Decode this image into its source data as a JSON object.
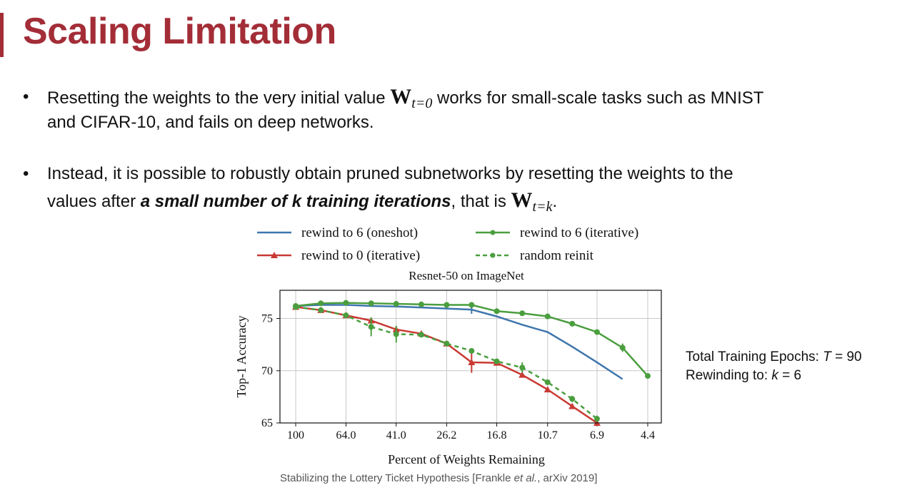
{
  "slide": {
    "title": "Scaling Limitation",
    "accent_color": "#a32d37"
  },
  "bullets": [
    {
      "before": "Resetting the weights to the very initial value ",
      "math": "W",
      "math_sub": "t=0",
      "after_line1": " works for small-scale tasks such as MNIST",
      "line2": "and CIFAR-10, and fails on deep networks."
    },
    {
      "line1": "Instead, it is possible to robustly obtain pruned subnetworks by resetting the weights to the",
      "line2_before": "values after ",
      "line2_emph": "a small number of k training iterations",
      "line2_mid": ", that is ",
      "math": "W",
      "math_sub": "t=k",
      "line2_after": "."
    }
  ],
  "bullet_symbol": "•",
  "side_note": {
    "line1_label": "Total Training Epochs: ",
    "line1_var": "T",
    "line1_value": " = 90",
    "line2_label": "Rewinding to: ",
    "line2_var": "k",
    "line2_value": " = 6"
  },
  "caption": {
    "before": "Stabilizing the Lottery Ticket Hypothesis [Frankle ",
    "emph": "et al.",
    "after": ", arXiv 2019]"
  },
  "chart_data": {
    "type": "line",
    "title": "Resnet-50 on ImageNet",
    "xlabel": "Percent of Weights Remaining",
    "ylabel": "Top-1 Accuracy",
    "x_scale": "log (reversed)",
    "x_ticks": [
      100,
      64.0,
      41.0,
      26.2,
      16.8,
      10.7,
      6.9,
      4.4
    ],
    "x_tick_labels": [
      "100",
      "64.0",
      "41.0",
      "26.2",
      "16.8",
      "10.7",
      "6.9",
      "4.4"
    ],
    "y_ticks": [
      65,
      70,
      75
    ],
    "ylim": [
      65,
      77.7
    ],
    "xlim": [
      115,
      3.9
    ],
    "grid": true,
    "legend_position": "top, above plot (2 columns)",
    "series": [
      {
        "name": "rewind to 6 (oneshot)",
        "color": "#3e76ad",
        "dashed": false,
        "marker": "none",
        "x": [
          100,
          80,
          64.0,
          51.2,
          41.0,
          32.8,
          26.2,
          21.0,
          16.8,
          13.4,
          10.7,
          8.6,
          6.9,
          5.5
        ],
        "y": [
          76.2,
          76.3,
          76.3,
          76.2,
          76.15,
          76.05,
          75.95,
          75.85,
          75.2,
          74.4,
          73.7,
          72.3,
          70.8,
          69.2
        ],
        "err": [
          0,
          0,
          0,
          0,
          0,
          0,
          0,
          0.4,
          0,
          0,
          0,
          0,
          0,
          0
        ]
      },
      {
        "name": "rewind to 6 (iterative)",
        "color": "#4a9e3e",
        "dashed": false,
        "marker": "circle",
        "x": [
          100,
          80,
          64.0,
          51.2,
          41.0,
          32.8,
          26.2,
          21.0,
          16.8,
          13.4,
          10.7,
          8.6,
          6.9,
          5.5,
          4.4
        ],
        "y": [
          76.2,
          76.45,
          76.5,
          76.45,
          76.4,
          76.35,
          76.3,
          76.3,
          75.7,
          75.5,
          75.2,
          74.5,
          73.7,
          72.2,
          69.5
        ],
        "err": [
          0,
          0,
          0,
          0,
          0,
          0,
          0,
          0,
          0,
          0,
          0,
          0,
          0,
          0.4,
          0
        ]
      },
      {
        "name": "rewind to 0 (iterative)",
        "color": "#c93a33",
        "dashed": false,
        "marker": "triangle",
        "x": [
          100,
          80,
          64.0,
          51.2,
          41.0,
          32.8,
          26.2,
          21.0,
          16.8,
          13.4,
          10.7,
          8.6,
          6.9
        ],
        "y": [
          76.1,
          75.8,
          75.3,
          74.8,
          73.95,
          73.55,
          72.6,
          70.8,
          70.75,
          69.6,
          68.2,
          66.6,
          65.0
        ],
        "err": [
          0,
          0,
          0,
          0,
          0,
          0,
          0,
          1.0,
          0,
          0,
          0,
          0,
          0
        ]
      },
      {
        "name": "random reinit",
        "color": "#4a9e3e",
        "dashed": true,
        "marker": "circle",
        "x": [
          100,
          80,
          64.0,
          51.2,
          41.0,
          32.8,
          26.2,
          21.0,
          16.8,
          13.4,
          10.7,
          8.6,
          6.9
        ],
        "y": [
          76.1,
          75.8,
          75.3,
          74.2,
          73.5,
          73.45,
          72.6,
          71.9,
          70.9,
          70.3,
          68.9,
          67.3,
          65.4
        ],
        "err": [
          0,
          0,
          0,
          0.9,
          0.8,
          0,
          0,
          0,
          0,
          0.5,
          0,
          0.3,
          0.3
        ]
      }
    ]
  }
}
